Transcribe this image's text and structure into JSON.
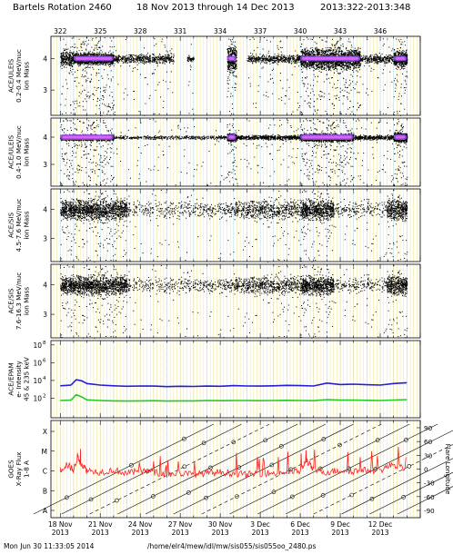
{
  "title": {
    "rotation": "Bartels Rotation 2460",
    "range": "18 Nov 2013 through 14 Dec 2013",
    "doy": "2013:322-2013:348"
  },
  "footer": {
    "timestamp": "Mon Jun 30 11:33:05 2014",
    "path": "/home/elr4/mew/idl/mw/sis055/sis055oo_2480.ps"
  },
  "colors": {
    "grid_major": "#9ecae1",
    "grid_minor": "#f2e9a0",
    "points": "#000000",
    "density": "#9b59ff",
    "dense_core": "#ff66ff",
    "epam_high": "#1f1fd6",
    "epam_low": "#22cc22",
    "xray": "#ff2020",
    "flare_line": "#000000"
  },
  "chart_data": [
    {
      "type": "scatter",
      "panel": "ACE/ULEIS 0.2-0.4 MeV/nuc",
      "ylabel_lines": [
        "ACE/ULEIS",
        "0.2-0.4 MeV/nuc",
        "ion Mass"
      ],
      "ytick_labels": [
        "4",
        "3"
      ],
      "ylim": [
        2.2,
        4.7
      ],
      "bands": [
        {
          "start_doy": 322.0,
          "end_doy": 323.0,
          "level": 4.0,
          "spread": 0.35,
          "density": "high"
        },
        {
          "start_doy": 323.0,
          "end_doy": 326.0,
          "level": 4.0,
          "spread": 0.25,
          "density": "very high"
        },
        {
          "start_doy": 326.0,
          "end_doy": 330.5,
          "level": 4.0,
          "spread": 0.2,
          "density": "medium"
        },
        {
          "start_doy": 331.5,
          "end_doy": 332.0,
          "level": 4.0,
          "spread": 0.15,
          "density": "medium"
        },
        {
          "start_doy": 334.5,
          "end_doy": 335.2,
          "level": 4.0,
          "spread": 0.6,
          "density": "very high"
        },
        {
          "start_doy": 336.0,
          "end_doy": 340.0,
          "level": 4.0,
          "spread": 0.2,
          "density": "medium"
        },
        {
          "start_doy": 340.0,
          "end_doy": 344.5,
          "level": 4.0,
          "spread": 0.45,
          "density": "very high"
        },
        {
          "start_doy": 344.5,
          "end_doy": 347.0,
          "level": 4.0,
          "spread": 0.2,
          "density": "medium"
        },
        {
          "start_doy": 347.0,
          "end_doy": 348.0,
          "level": 4.0,
          "spread": 0.35,
          "density": "very high"
        }
      ]
    },
    {
      "type": "scatter",
      "panel": "ACE/ULEIS 0.4-1.0 MeV/nuc",
      "ylabel_lines": [
        "ACE/ULEIS",
        "0.4-1.0 MeV/nuc",
        "ion Mass"
      ],
      "ytick_labels": [
        "4",
        "3"
      ],
      "ylim": [
        2.2,
        4.7
      ],
      "bands": [
        {
          "start_doy": 322.0,
          "end_doy": 326.0,
          "level": 4.0,
          "spread": 0.15,
          "density": "very high"
        },
        {
          "start_doy": 326.0,
          "end_doy": 334.5,
          "level": 4.0,
          "spread": 0.1,
          "density": "low"
        },
        {
          "start_doy": 334.5,
          "end_doy": 335.2,
          "level": 4.0,
          "spread": 0.2,
          "density": "very high"
        },
        {
          "start_doy": 335.2,
          "end_doy": 340.0,
          "level": 4.0,
          "spread": 0.12,
          "density": "medium"
        },
        {
          "start_doy": 340.0,
          "end_doy": 344.0,
          "level": 4.0,
          "spread": 0.2,
          "density": "very high"
        },
        {
          "start_doy": 344.0,
          "end_doy": 347.0,
          "level": 4.0,
          "spread": 0.12,
          "density": "medium"
        },
        {
          "start_doy": 347.0,
          "end_doy": 348.0,
          "level": 4.0,
          "spread": 0.25,
          "density": "very high"
        }
      ]
    },
    {
      "type": "scatter",
      "panel": "ACE/SIS 4.5-7.6 MeV/nuc",
      "ylabel_lines": [
        "ACE/SIS",
        "4.5-7.6 MeV/nuc",
        "ion Mass"
      ],
      "ytick_labels": [
        "4",
        "3"
      ],
      "ylim": [
        2.2,
        4.7
      ],
      "bands": [
        {
          "start_doy": 322.0,
          "end_doy": 327.0,
          "level": 4.0,
          "spread": 0.5,
          "density": "high"
        },
        {
          "start_doy": 327.0,
          "end_doy": 335.0,
          "level": 4.0,
          "spread": 0.4,
          "density": "low"
        },
        {
          "start_doy": 335.0,
          "end_doy": 340.0,
          "level": 4.0,
          "spread": 0.45,
          "density": "medium"
        },
        {
          "start_doy": 340.0,
          "end_doy": 342.5,
          "level": 4.0,
          "spread": 0.5,
          "density": "high"
        },
        {
          "start_doy": 342.5,
          "end_doy": 346.5,
          "level": 4.0,
          "spread": 0.4,
          "density": "low"
        },
        {
          "start_doy": 346.5,
          "end_doy": 348.0,
          "level": 4.0,
          "spread": 0.5,
          "density": "high"
        }
      ]
    },
    {
      "type": "scatter",
      "panel": "ACE/SIS 7.6-16.3 MeV/nuc",
      "ylabel_lines": [
        "ACE/SIS",
        "7.6-16.3 MeV/nuc",
        "ion Mass"
      ],
      "ytick_labels": [
        "4",
        "3"
      ],
      "ylim": [
        2.2,
        4.7
      ],
      "bands": [
        {
          "start_doy": 322.0,
          "end_doy": 327.0,
          "level": 4.0,
          "spread": 0.45,
          "density": "high"
        },
        {
          "start_doy": 327.0,
          "end_doy": 335.0,
          "level": 4.0,
          "spread": 0.35,
          "density": "low"
        },
        {
          "start_doy": 335.0,
          "end_doy": 340.0,
          "level": 4.0,
          "spread": 0.4,
          "density": "medium"
        },
        {
          "start_doy": 340.0,
          "end_doy": 342.5,
          "level": 4.0,
          "spread": 0.45,
          "density": "high"
        },
        {
          "start_doy": 342.5,
          "end_doy": 346.5,
          "level": 4.0,
          "spread": 0.35,
          "density": "low"
        },
        {
          "start_doy": 346.5,
          "end_doy": 348.0,
          "level": 4.0,
          "spread": 0.45,
          "density": "high"
        }
      ]
    },
    {
      "type": "line",
      "panel": "ACE/EPAM",
      "ylabel_lines": [
        "ACE/EPAM",
        "e- Intensity",
        "45 & 235 keV"
      ],
      "ytick_labels": [
        "10^8",
        "10^6",
        "10^4",
        "10^2"
      ],
      "yscale": "log",
      "ylim": [
        1,
        100000000
      ],
      "series": [
        {
          "color": "#1f1fd6",
          "x": [
            322,
            322.8,
            323.2,
            323.6,
            324.0,
            325.0,
            326.0,
            327.0,
            328.0,
            329.0,
            330.0,
            331.0,
            332.0,
            333.0,
            334.0,
            335.0,
            336.0,
            337.0,
            338.0,
            339.0,
            340.0,
            341.0,
            342.0,
            343.0,
            344.0,
            345.0,
            346.0,
            347.0,
            348.0
          ],
          "y": [
            2500,
            3000,
            12000,
            9000,
            4500,
            3000,
            2500,
            2200,
            2400,
            2300,
            2000,
            2200,
            2100,
            2300,
            2200,
            2600,
            2400,
            2300,
            2500,
            2800,
            2600,
            2400,
            5000,
            3500,
            3800,
            3300,
            3000,
            4500,
            5500
          ]
        },
        {
          "color": "#22cc22",
          "x": [
            322,
            322.8,
            323.2,
            323.6,
            324.0,
            325.0,
            326.0,
            327.0,
            328.0,
            329.0,
            330.0,
            331.0,
            332.0,
            333.0,
            334.0,
            335.0,
            336.0,
            337.0,
            338.0,
            339.0,
            340.0,
            341.0,
            342.0,
            343.0,
            344.0,
            345.0,
            346.0,
            347.0,
            348.0
          ],
          "y": [
            55,
            60,
            250,
            140,
            65,
            55,
            50,
            48,
            50,
            52,
            48,
            50,
            50,
            55,
            52,
            55,
            55,
            52,
            55,
            58,
            55,
            52,
            70,
            60,
            62,
            58,
            55,
            62,
            70
          ]
        }
      ]
    },
    {
      "type": "line",
      "panel": "GOES X-Ray Flux",
      "ylabel_lines": [
        "GOES",
        "X-Ray Flux",
        "1-8 A"
      ],
      "ytick_labels": [
        "X",
        "M",
        "C",
        "B",
        "A"
      ],
      "right_label": "Flare Longitude",
      "right_ticks": [
        "90",
        "60",
        "30",
        "0",
        "-30",
        "-60",
        "-90"
      ],
      "series": [
        {
          "color": "#ff2020",
          "x": [
            322,
            322.5,
            323,
            323.3,
            323.6,
            324,
            325,
            326,
            327,
            328,
            329,
            330,
            331,
            332,
            333,
            334,
            335,
            336,
            337,
            338,
            339,
            340,
            340.5,
            341,
            342,
            343,
            344,
            345,
            346,
            347,
            348
          ],
          "class_level": [
            "C1",
            "C2",
            "C1",
            "C5",
            "C2",
            "C1",
            "B8",
            "C1",
            "B7",
            "B9",
            "B8",
            "B6",
            "B7",
            "B6",
            "B7",
            "B8",
            "B7",
            "B6",
            "B7",
            "B7",
            "B8",
            "B9",
            "C3",
            "C1",
            "B8",
            "C1",
            "B9",
            "C1",
            "C1",
            "C2",
            "C1"
          ]
        }
      ],
      "flare_tracks": 14
    }
  ],
  "xaxis": {
    "top_ticks": [
      "322",
      "325",
      "328",
      "331",
      "334",
      "337",
      "340",
      "343",
      "346"
    ],
    "bottom_ticks": [
      {
        "day": "18 Nov",
        "year": "2013"
      },
      {
        "day": "21 Nov",
        "year": "2013"
      },
      {
        "day": "24 Nov",
        "year": "2013"
      },
      {
        "day": "27 Nov",
        "year": "2013"
      },
      {
        "day": "30 Nov",
        "year": "2013"
      },
      {
        "day": "3 Dec",
        "year": "2013"
      },
      {
        "day": "6 Dec",
        "year": "2013"
      },
      {
        "day": "9 Dec",
        "year": "2013"
      },
      {
        "day": "12 Dec",
        "year": "2013"
      }
    ],
    "xlim_doy": [
      321.3,
      349.0
    ]
  }
}
